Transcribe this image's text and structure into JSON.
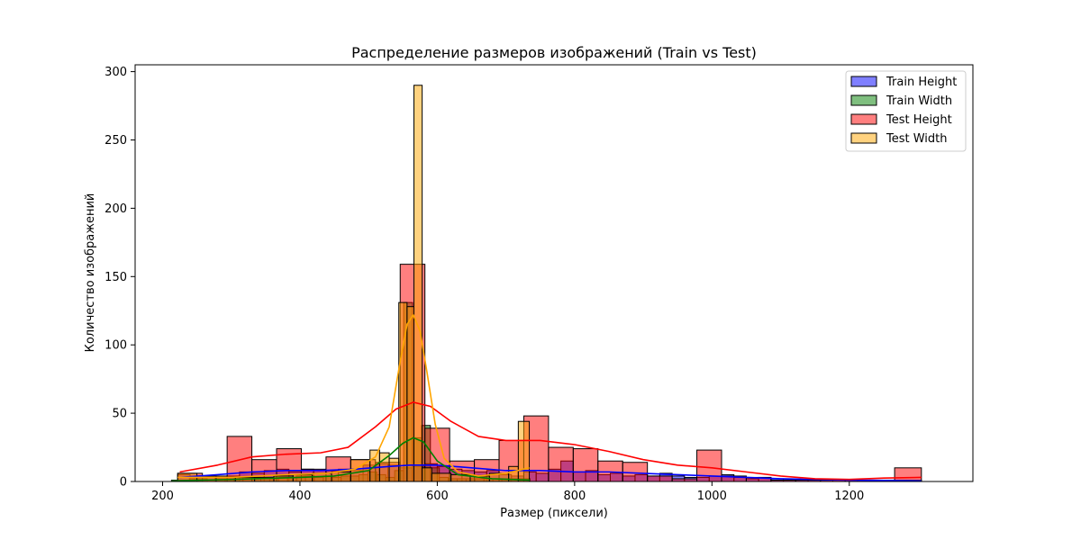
{
  "chart_data": {
    "type": "histogram",
    "title": "Распределение размеров изображений (Train vs Test)",
    "xlabel": "Размер (пиксели)",
    "ylabel": "Количество изображений",
    "xlim": [
      160,
      1380
    ],
    "ylim": [
      0,
      305
    ],
    "xticks": [
      200,
      400,
      600,
      800,
      1000,
      1200
    ],
    "yticks": [
      0,
      50,
      100,
      150,
      200,
      250,
      300
    ],
    "legend_position": "top-right",
    "series": [
      {
        "name": "Train Height",
        "color": "#0000ff",
        "bar_alpha": 0.5,
        "bins": [
          [
            222,
            240,
            5
          ],
          [
            240,
            258,
            4
          ],
          [
            258,
            276,
            3
          ],
          [
            276,
            294,
            2
          ],
          [
            294,
            312,
            4
          ],
          [
            312,
            330,
            7
          ],
          [
            330,
            348,
            6
          ],
          [
            348,
            366,
            8
          ],
          [
            366,
            384,
            9
          ],
          [
            384,
            402,
            7
          ],
          [
            402,
            420,
            9
          ],
          [
            420,
            438,
            8
          ],
          [
            438,
            456,
            8
          ],
          [
            456,
            474,
            9
          ],
          [
            474,
            492,
            8
          ],
          [
            492,
            510,
            12
          ],
          [
            510,
            528,
            13
          ],
          [
            528,
            546,
            12
          ],
          [
            546,
            564,
            10
          ],
          [
            564,
            582,
            11
          ],
          [
            582,
            600,
            13
          ],
          [
            600,
            618,
            11
          ],
          [
            618,
            636,
            9
          ],
          [
            636,
            654,
            8
          ],
          [
            654,
            672,
            7
          ],
          [
            672,
            690,
            8
          ],
          [
            690,
            708,
            5
          ],
          [
            708,
            726,
            4
          ],
          [
            726,
            744,
            7
          ],
          [
            744,
            762,
            6
          ],
          [
            762,
            780,
            9
          ],
          [
            780,
            798,
            15
          ],
          [
            798,
            816,
            7
          ],
          [
            816,
            834,
            8
          ],
          [
            834,
            852,
            5
          ],
          [
            852,
            870,
            6
          ],
          [
            870,
            888,
            4
          ],
          [
            888,
            906,
            5
          ],
          [
            906,
            924,
            4
          ],
          [
            924,
            942,
            6
          ],
          [
            942,
            960,
            4
          ],
          [
            960,
            978,
            3
          ],
          [
            978,
            996,
            3
          ],
          [
            996,
            1014,
            4
          ],
          [
            1014,
            1032,
            5
          ],
          [
            1032,
            1050,
            3
          ],
          [
            1050,
            1068,
            2
          ],
          [
            1068,
            1086,
            3
          ],
          [
            1086,
            1104,
            2
          ],
          [
            1104,
            1122,
            2
          ],
          [
            1122,
            1140,
            1
          ],
          [
            1140,
            1158,
            1
          ],
          [
            1158,
            1176,
            1
          ],
          [
            1176,
            1194,
            1
          ],
          [
            1194,
            1212,
            1
          ],
          [
            1212,
            1230,
            1
          ],
          [
            1230,
            1248,
            1
          ],
          [
            1248,
            1266,
            1
          ],
          [
            1266,
            1284,
            1
          ],
          [
            1284,
            1305,
            1
          ]
        ],
        "kde": [
          [
            225,
            3
          ],
          [
            280,
            5
          ],
          [
            330,
            7
          ],
          [
            380,
            8
          ],
          [
            430,
            8
          ],
          [
            480,
            9
          ],
          [
            530,
            11
          ],
          [
            560,
            12
          ],
          [
            600,
            12
          ],
          [
            650,
            10
          ],
          [
            700,
            8
          ],
          [
            750,
            8
          ],
          [
            800,
            7
          ],
          [
            850,
            7
          ],
          [
            900,
            6
          ],
          [
            950,
            5
          ],
          [
            1000,
            4
          ],
          [
            1050,
            3
          ],
          [
            1100,
            2
          ],
          [
            1150,
            1.5
          ],
          [
            1200,
            1
          ],
          [
            1250,
            0.8
          ],
          [
            1305,
            0.5
          ]
        ]
      },
      {
        "name": "Train Width",
        "color": "#008000",
        "bar_alpha": 0.5,
        "bins": [
          [
            213,
            226,
            1
          ],
          [
            226,
            239,
            1
          ],
          [
            239,
            252,
            2
          ],
          [
            252,
            265,
            2
          ],
          [
            265,
            278,
            1
          ],
          [
            278,
            291,
            2
          ],
          [
            291,
            304,
            2
          ],
          [
            304,
            317,
            3
          ],
          [
            317,
            330,
            3
          ],
          [
            330,
            343,
            3
          ],
          [
            343,
            356,
            2
          ],
          [
            356,
            369,
            2
          ],
          [
            369,
            382,
            3
          ],
          [
            382,
            395,
            3
          ],
          [
            395,
            408,
            4
          ],
          [
            408,
            421,
            4
          ],
          [
            421,
            434,
            3
          ],
          [
            434,
            447,
            4
          ],
          [
            447,
            460,
            3
          ],
          [
            460,
            473,
            4
          ],
          [
            473,
            486,
            4
          ],
          [
            486,
            499,
            5
          ],
          [
            499,
            512,
            7
          ],
          [
            512,
            525,
            5
          ],
          [
            525,
            538,
            3
          ],
          [
            538,
            551,
            8
          ],
          [
            551,
            564,
            131
          ],
          [
            564,
            577,
            32
          ],
          [
            577,
            590,
            41
          ],
          [
            590,
            603,
            10
          ],
          [
            603,
            616,
            3
          ],
          [
            616,
            629,
            2
          ],
          [
            629,
            642,
            2
          ],
          [
            642,
            655,
            2
          ],
          [
            655,
            668,
            2
          ],
          [
            668,
            681,
            2
          ],
          [
            681,
            694,
            2
          ],
          [
            694,
            707,
            2
          ],
          [
            707,
            720,
            2
          ],
          [
            720,
            735,
            2
          ]
        ],
        "kde": [
          [
            213,
            0.5
          ],
          [
            300,
            1.5
          ],
          [
            400,
            3
          ],
          [
            450,
            4
          ],
          [
            500,
            8
          ],
          [
            530,
            19
          ],
          [
            550,
            28
          ],
          [
            565,
            32
          ],
          [
            580,
            29
          ],
          [
            600,
            15
          ],
          [
            630,
            5
          ],
          [
            680,
            2
          ],
          [
            735,
            1
          ]
        ]
      },
      {
        "name": "Test Height",
        "color": "#ff0000",
        "bar_alpha": 0.5,
        "bins": [
          [
            222,
            258,
            6
          ],
          [
            258,
            294,
            4
          ],
          [
            294,
            330,
            33
          ],
          [
            330,
            366,
            16
          ],
          [
            366,
            402,
            24
          ],
          [
            402,
            438,
            9
          ],
          [
            438,
            474,
            18
          ],
          [
            474,
            510,
            16
          ],
          [
            510,
            546,
            14
          ],
          [
            546,
            582,
            159
          ],
          [
            582,
            618,
            39
          ],
          [
            618,
            654,
            15
          ],
          [
            654,
            690,
            16
          ],
          [
            690,
            726,
            30
          ],
          [
            726,
            762,
            48
          ],
          [
            762,
            798,
            25
          ],
          [
            798,
            834,
            24
          ],
          [
            834,
            870,
            15
          ],
          [
            870,
            906,
            14
          ],
          [
            906,
            942,
            4
          ],
          [
            942,
            978,
            2
          ],
          [
            978,
            1014,
            23
          ],
          [
            1014,
            1050,
            4
          ],
          [
            1050,
            1086,
            3
          ],
          [
            1086,
            1122,
            1
          ],
          [
            1122,
            1158,
            1
          ],
          [
            1158,
            1194,
            1
          ],
          [
            1194,
            1230,
            1
          ],
          [
            1230,
            1266,
            1
          ],
          [
            1266,
            1305,
            10
          ]
        ],
        "kde": [
          [
            225,
            7
          ],
          [
            280,
            12
          ],
          [
            330,
            18
          ],
          [
            380,
            20
          ],
          [
            430,
            21
          ],
          [
            470,
            25
          ],
          [
            510,
            40
          ],
          [
            540,
            53
          ],
          [
            565,
            58
          ],
          [
            590,
            55
          ],
          [
            620,
            44
          ],
          [
            660,
            33
          ],
          [
            700,
            30
          ],
          [
            750,
            30
          ],
          [
            800,
            27
          ],
          [
            850,
            22
          ],
          [
            900,
            16
          ],
          [
            950,
            12
          ],
          [
            1000,
            10
          ],
          [
            1050,
            7
          ],
          [
            1100,
            4
          ],
          [
            1150,
            2
          ],
          [
            1200,
            1.5
          ],
          [
            1250,
            2.5
          ],
          [
            1305,
            3
          ]
        ]
      },
      {
        "name": "Test Width",
        "color": "#ffa500",
        "bar_alpha": 0.5,
        "bins": [
          [
            222,
            250,
            6
          ],
          [
            250,
            278,
            4
          ],
          [
            278,
            306,
            3
          ],
          [
            306,
            334,
            3
          ],
          [
            334,
            362,
            3
          ],
          [
            362,
            390,
            4
          ],
          [
            390,
            418,
            5
          ],
          [
            418,
            446,
            6
          ],
          [
            446,
            474,
            7
          ],
          [
            474,
            502,
            16
          ],
          [
            502,
            516,
            23
          ],
          [
            516,
            530,
            21
          ],
          [
            530,
            544,
            17
          ],
          [
            544,
            556,
            131
          ],
          [
            556,
            566,
            128
          ],
          [
            566,
            578,
            290
          ],
          [
            578,
            592,
            10
          ],
          [
            592,
            620,
            6
          ],
          [
            620,
            648,
            5
          ],
          [
            648,
            676,
            4
          ],
          [
            676,
            704,
            6
          ],
          [
            704,
            718,
            11
          ],
          [
            718,
            734,
            44
          ]
        ],
        "kde": [
          [
            222,
            3
          ],
          [
            300,
            3
          ],
          [
            380,
            5
          ],
          [
            440,
            6
          ],
          [
            480,
            9
          ],
          [
            510,
            18
          ],
          [
            530,
            40
          ],
          [
            545,
            85
          ],
          [
            556,
            115
          ],
          [
            565,
            122
          ],
          [
            575,
            110
          ],
          [
            585,
            80
          ],
          [
            597,
            42
          ],
          [
            610,
            17
          ],
          [
            630,
            7
          ],
          [
            660,
            4
          ],
          [
            700,
            6
          ],
          [
            734,
            10
          ]
        ]
      }
    ]
  }
}
